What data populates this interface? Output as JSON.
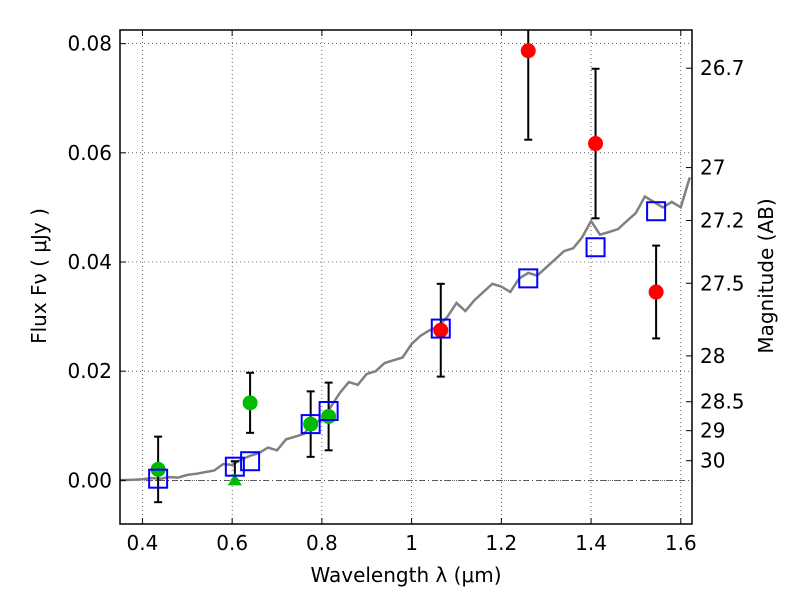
{
  "chart_data": {
    "type": "scatter",
    "xlabel": "Wavelength  λ (μm)",
    "ylabel": "Flux  Fν  ( μJy )",
    "right_ylabel": "Magnitude (AB)",
    "xlim": [
      0.35,
      1.625
    ],
    "ylim": [
      -0.008,
      0.0825
    ],
    "xticks": [
      0.4,
      0.6,
      0.8,
      1.0,
      1.2,
      1.4,
      1.6
    ],
    "xtick_labels": [
      "0.4",
      "0.6",
      "0.8",
      "1",
      "1.2",
      "1.4",
      "1.6"
    ],
    "yticks": [
      0.0,
      0.02,
      0.04,
      0.06,
      0.08
    ],
    "ytick_labels": [
      "0.00",
      "0.02",
      "0.04",
      "0.06",
      "0.08"
    ],
    "right_ticks": [
      {
        "label": "26.7",
        "flux": 0.0755
      },
      {
        "label": "27",
        "flux": 0.0573
      },
      {
        "label": "27.2",
        "flux": 0.0476
      },
      {
        "label": "27.5",
        "flux": 0.0361
      },
      {
        "label": "28",
        "flux": 0.0228
      },
      {
        "label": "28.5",
        "flux": 0.0144
      },
      {
        "label": "29",
        "flux": 0.0091
      },
      {
        "label": "30",
        "flux": 0.0036
      }
    ],
    "grid": true,
    "zero_line": true,
    "model_curve": {
      "color": "#808080",
      "x": [
        0.35,
        0.38,
        0.4,
        0.42,
        0.44,
        0.46,
        0.48,
        0.5,
        0.52,
        0.54,
        0.56,
        0.58,
        0.6,
        0.62,
        0.64,
        0.66,
        0.68,
        0.7,
        0.72,
        0.74,
        0.76,
        0.78,
        0.8,
        0.82,
        0.84,
        0.86,
        0.88,
        0.9,
        0.92,
        0.94,
        0.96,
        0.98,
        1.0,
        1.02,
        1.04,
        1.06,
        1.08,
        1.1,
        1.12,
        1.14,
        1.16,
        1.18,
        1.2,
        1.22,
        1.24,
        1.26,
        1.28,
        1.3,
        1.32,
        1.34,
        1.36,
        1.38,
        1.4,
        1.42,
        1.44,
        1.46,
        1.48,
        1.5,
        1.52,
        1.54,
        1.56,
        1.58,
        1.6,
        1.62
      ],
      "y": [
        0.0,
        0.0001,
        0.0002,
        0.0004,
        0.0003,
        0.0006,
        0.0005,
        0.001,
        0.0012,
        0.0015,
        0.0018,
        0.003,
        0.0028,
        0.0038,
        0.0045,
        0.005,
        0.006,
        0.0055,
        0.0075,
        0.008,
        0.0085,
        0.0105,
        0.011,
        0.0135,
        0.016,
        0.018,
        0.0175,
        0.0195,
        0.02,
        0.0215,
        0.022,
        0.0225,
        0.025,
        0.0265,
        0.0275,
        0.0282,
        0.03,
        0.0325,
        0.031,
        0.033,
        0.0345,
        0.036,
        0.0355,
        0.0345,
        0.037,
        0.038,
        0.0375,
        0.039,
        0.0405,
        0.042,
        0.0425,
        0.0445,
        0.0475,
        0.045,
        0.0455,
        0.046,
        0.0475,
        0.049,
        0.052,
        0.051,
        0.05,
        0.051,
        0.05,
        0.0555
      ]
    },
    "series": [
      {
        "marker": "circle",
        "color": "#00bb00",
        "points": [
          {
            "x": 0.435,
            "y": 0.002,
            "err": 0.006
          },
          {
            "x": 0.64,
            "y": 0.0142,
            "err": 0.0055
          },
          {
            "x": 0.775,
            "y": 0.0103,
            "err": 0.006
          },
          {
            "x": 0.815,
            "y": 0.0117,
            "err": 0.0062
          }
        ]
      },
      {
        "marker": "triangle",
        "color": "#00bb00",
        "points": [
          {
            "x": 0.606,
            "y": 0.0,
            "errlo": 0.0,
            "errhi": 0.0035
          }
        ]
      },
      {
        "marker": "circle",
        "color": "#ff0000",
        "points": [
          {
            "x": 1.065,
            "y": 0.0275,
            "err": 0.0085
          },
          {
            "x": 1.26,
            "y": 0.0787,
            "err": 0.0163
          },
          {
            "x": 1.41,
            "y": 0.0617,
            "err": 0.0137
          },
          {
            "x": 1.545,
            "y": 0.0345,
            "err": 0.0085
          }
        ]
      },
      {
        "marker": "open-square",
        "color": "#0000ff",
        "points": [
          {
            "x": 0.435,
            "y": 0.0003
          },
          {
            "x": 0.606,
            "y": 0.0025
          },
          {
            "x": 0.64,
            "y": 0.0035
          },
          {
            "x": 0.775,
            "y": 0.0103
          },
          {
            "x": 0.815,
            "y": 0.0127
          },
          {
            "x": 1.065,
            "y": 0.0278
          },
          {
            "x": 1.26,
            "y": 0.037
          },
          {
            "x": 1.41,
            "y": 0.0427
          },
          {
            "x": 1.545,
            "y": 0.0493
          }
        ]
      }
    ]
  }
}
